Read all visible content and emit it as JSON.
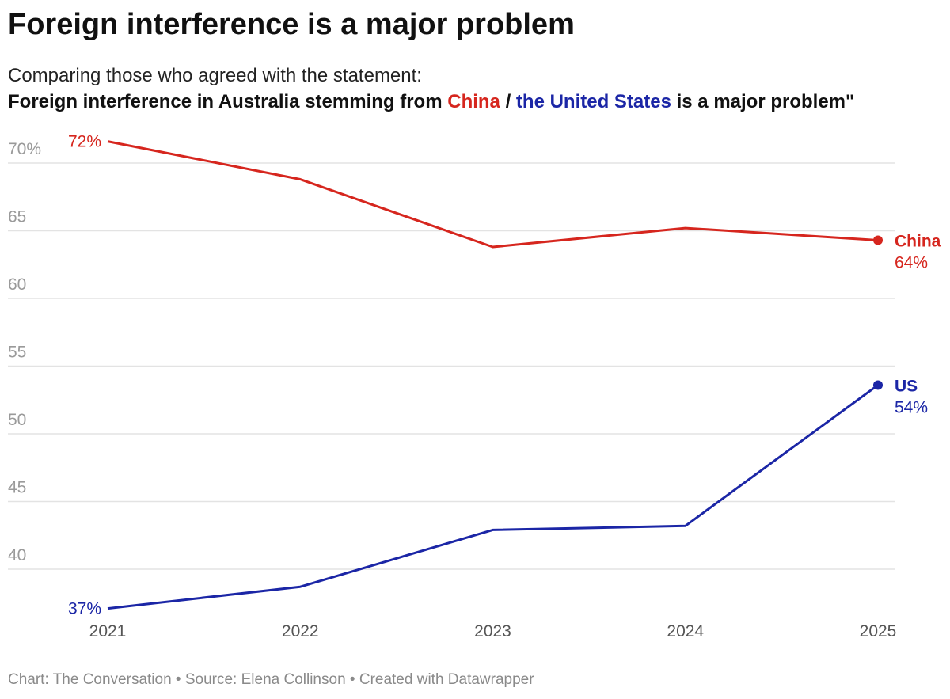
{
  "title": "Foreign interference is a major problem",
  "subtitle": "Comparing those who agreed with the statement:",
  "statement": {
    "pre": "Foreign interference in Australia stemming from ",
    "china": "China",
    "sep": " / ",
    "us": "the United States",
    "post": " is a major problem\""
  },
  "footer": "Chart: The Conversation • Source: Elena Collinson • Created with Datawrapper",
  "colors": {
    "china": "#d6261e",
    "us": "#1b26a6",
    "grid": "#e3e3e3",
    "axis_text": "#9a9a9a"
  },
  "chart_data": {
    "type": "line",
    "x": [
      "2021",
      "2022",
      "2023",
      "2024",
      "2025"
    ],
    "ylim": [
      37,
      72
    ],
    "yticks": [
      40,
      45,
      50,
      55,
      60,
      65,
      70
    ],
    "ytick_labels": [
      "40",
      "45",
      "50",
      "55",
      "60",
      "65",
      "70%"
    ],
    "grid": true,
    "series": [
      {
        "name": "China",
        "values": [
          71.6,
          68.8,
          63.8,
          65.2,
          64.3
        ],
        "start_label": "72%",
        "end_label": "64%"
      },
      {
        "name": "US",
        "values": [
          37.1,
          38.7,
          42.9,
          43.2,
          53.6
        ],
        "start_label": "37%",
        "end_label": "54%"
      }
    ]
  }
}
